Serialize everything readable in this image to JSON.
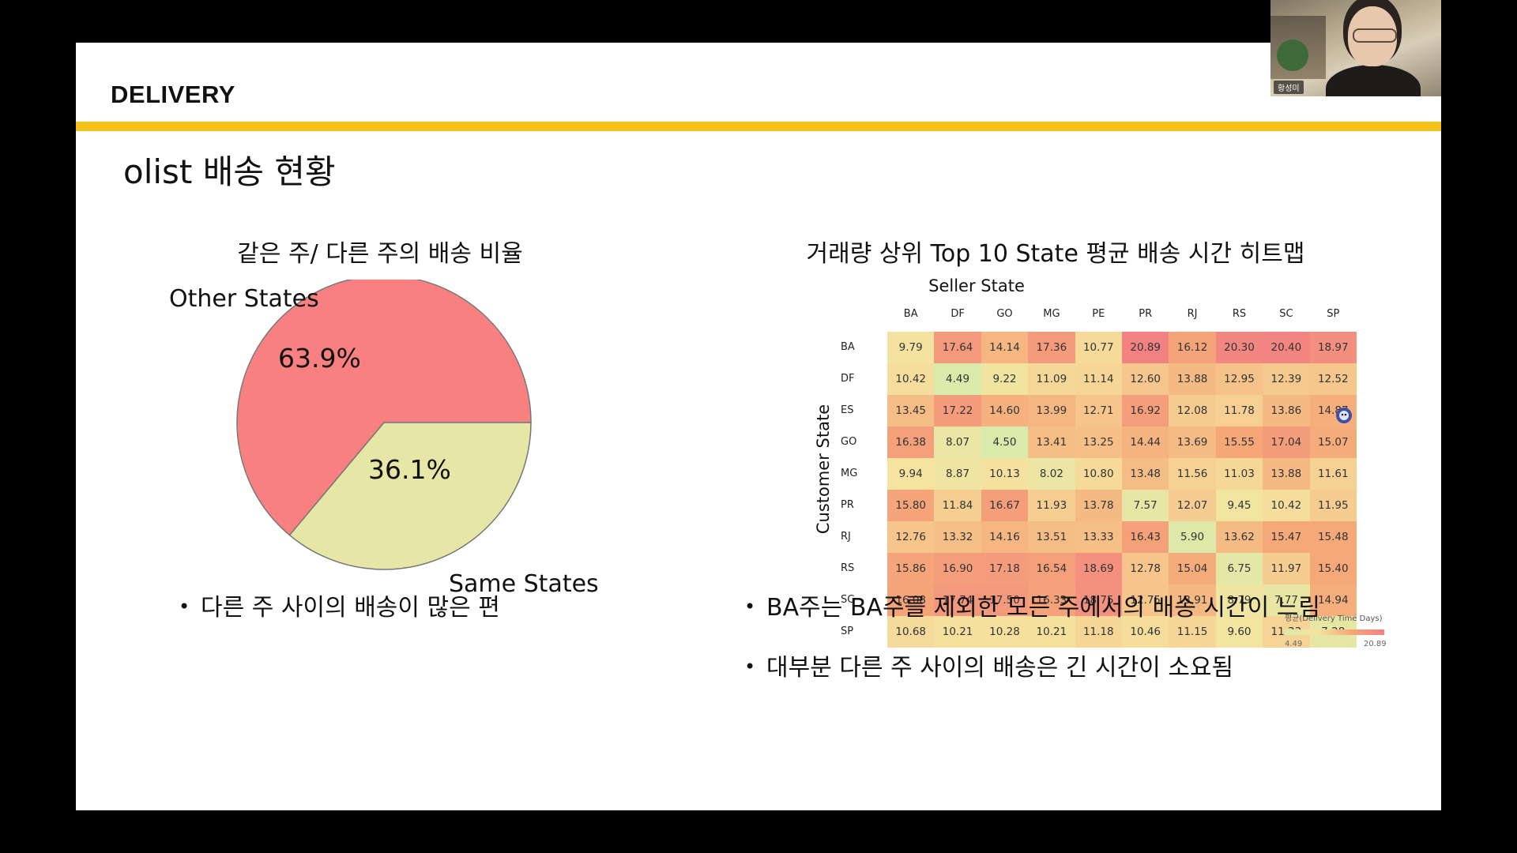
{
  "slide": {
    "header": "DELIVERY",
    "title": "olist 배송 현황"
  },
  "pie_section": {
    "title": "같은 주/ 다른 주의 배송 비율",
    "labels": {
      "other": "Other States",
      "same": "Same States"
    },
    "pct": {
      "other": "63.9%",
      "same": "36.1%"
    },
    "bullet": "다른 주 사이의 배송이 많은 편"
  },
  "heatmap_section": {
    "title": "거래량 상위 Top 10 State 평균 배송 시간 히트맵",
    "bullets": [
      "BA주는 BA주를 제외한 모든 주에서의 배송 시간이 느림",
      "대부분 다른 주 사이의 배송은 긴 시간이 소요됨"
    ]
  },
  "chart_data": [
    {
      "type": "pie",
      "title": "같은 주/ 다른 주의 배송 비율",
      "labels": [
        "Other States",
        "Same States"
      ],
      "values": [
        63.9,
        36.1
      ],
      "colors": [
        "#f98080",
        "#e6e7a6"
      ]
    },
    {
      "type": "heatmap",
      "title": "거래량 상위 Top 10 State 평균 배송 시간 히트맵",
      "xlabel": "Seller State",
      "ylabel": "Customer State",
      "x": [
        "BA",
        "DF",
        "GO",
        "MG",
        "PE",
        "PR",
        "RJ",
        "RS",
        "SC",
        "SP"
      ],
      "y": [
        "BA",
        "DF",
        "ES",
        "GO",
        "MG",
        "PR",
        "RJ",
        "RS",
        "SC",
        "SP"
      ],
      "values": [
        [
          9.79,
          17.64,
          14.14,
          17.36,
          10.77,
          20.89,
          16.12,
          20.3,
          20.4,
          18.97
        ],
        [
          10.42,
          4.49,
          9.22,
          11.09,
          11.14,
          12.6,
          13.88,
          12.95,
          12.39,
          12.52
        ],
        [
          13.45,
          17.22,
          14.6,
          13.99,
          12.71,
          16.92,
          12.08,
          11.78,
          13.86,
          14.87
        ],
        [
          16.38,
          8.07,
          4.5,
          13.41,
          13.25,
          14.44,
          13.69,
          15.55,
          17.04,
          15.07
        ],
        [
          9.94,
          8.87,
          10.13,
          8.02,
          10.8,
          13.48,
          11.56,
          11.03,
          13.88,
          11.61
        ],
        [
          15.8,
          11.84,
          16.67,
          11.93,
          13.78,
          7.57,
          12.07,
          9.45,
          10.42,
          11.95
        ],
        [
          12.76,
          13.32,
          14.16,
          13.51,
          13.33,
          16.43,
          5.9,
          13.62,
          15.47,
          15.48
        ],
        [
          15.86,
          16.9,
          17.18,
          16.54,
          18.69,
          12.78,
          15.04,
          6.75,
          11.97,
          15.4
        ],
        [
          16.08,
          17.74,
          17.5,
          16.33,
          18.75,
          12.75,
          13.91,
          8.79,
          7.77,
          14.94
        ],
        [
          10.68,
          10.21,
          10.28,
          10.21,
          11.18,
          10.46,
          11.15,
          9.6,
          11.33,
          7.28
        ]
      ],
      "colorbar": {
        "label": "평균(Delivery Time Days)",
        "min": "4.49",
        "max": "20.89"
      },
      "colors": [
        "#d8ebaa",
        "#f5e3a0",
        "#f5a878",
        "#f28282"
      ]
    }
  ],
  "webcam": {
    "name": "황성미"
  }
}
